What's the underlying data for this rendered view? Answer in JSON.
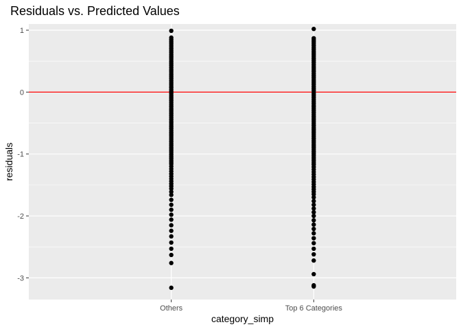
{
  "chart_data": {
    "type": "scatter",
    "title": "Residuals vs. Predicted Values",
    "xlabel": "category_simp",
    "ylabel": "residuals",
    "categories": [
      "Others",
      "Top 6 Categories"
    ],
    "y_ticks": [
      1,
      0,
      -1,
      -2,
      -3
    ],
    "y_tick_labels": [
      "1",
      "0",
      "-1",
      "-2",
      "-3"
    ],
    "ylim": [
      -3.35,
      1.1
    ],
    "grid": true,
    "panel_background": "#ebebeb",
    "point_color": "#000000",
    "reference_line": {
      "y": 0,
      "color": "#ff0000"
    },
    "series": [
      {
        "category": "Others",
        "y": [
          0.99,
          0.88,
          0.85,
          0.82,
          0.79,
          0.76,
          0.73,
          0.7,
          0.67,
          0.64,
          0.61,
          0.58,
          0.55,
          0.52,
          0.49,
          0.46,
          0.43,
          0.4,
          0.37,
          0.34,
          0.31,
          0.28,
          0.25,
          0.22,
          0.19,
          0.16,
          0.13,
          0.1,
          0.07,
          0.04,
          0.01,
          -0.02,
          -0.05,
          -0.08,
          -0.11,
          -0.14,
          -0.17,
          -0.2,
          -0.23,
          -0.26,
          -0.29,
          -0.32,
          -0.35,
          -0.38,
          -0.41,
          -0.44,
          -0.47,
          -0.5,
          -0.53,
          -0.56,
          -0.59,
          -0.62,
          -0.65,
          -0.68,
          -0.71,
          -0.74,
          -0.77,
          -0.8,
          -0.83,
          -0.86,
          -0.89,
          -0.92,
          -0.95,
          -0.98,
          -1.01,
          -1.04,
          -1.07,
          -1.1,
          -1.13,
          -1.16,
          -1.2,
          -1.24,
          -1.28,
          -1.32,
          -1.36,
          -1.4,
          -1.44,
          -1.48,
          -1.52,
          -1.56,
          -1.61,
          -1.66,
          -1.74,
          -1.82,
          -1.9,
          -1.98,
          -2.06,
          -2.15,
          -2.24,
          -2.33,
          -2.43,
          -2.53,
          -2.63,
          -2.76,
          -3.16
        ]
      },
      {
        "category": "Top 6 Categories",
        "y": [
          1.02,
          0.87,
          0.84,
          0.81,
          0.78,
          0.75,
          0.72,
          0.69,
          0.66,
          0.63,
          0.6,
          0.57,
          0.54,
          0.51,
          0.48,
          0.45,
          0.42,
          0.39,
          0.36,
          0.33,
          0.3,
          0.27,
          0.24,
          0.21,
          0.18,
          0.15,
          0.12,
          0.09,
          0.06,
          0.03,
          0.0,
          -0.03,
          -0.06,
          -0.09,
          -0.12,
          -0.15,
          -0.18,
          -0.21,
          -0.24,
          -0.27,
          -0.3,
          -0.33,
          -0.36,
          -0.39,
          -0.42,
          -0.45,
          -0.48,
          -0.51,
          -0.54,
          -0.57,
          -0.6,
          -0.63,
          -0.66,
          -0.69,
          -0.72,
          -0.75,
          -0.78,
          -0.81,
          -0.84,
          -0.87,
          -0.9,
          -0.93,
          -0.96,
          -0.99,
          -1.02,
          -1.05,
          -1.08,
          -1.11,
          -1.14,
          -1.17,
          -1.21,
          -1.25,
          -1.29,
          -1.33,
          -1.37,
          -1.41,
          -1.45,
          -1.49,
          -1.53,
          -1.57,
          -1.61,
          -1.65,
          -1.7,
          -1.76,
          -1.82,
          -1.88,
          -1.94,
          -2.0,
          -2.07,
          -2.14,
          -2.21,
          -2.28,
          -2.36,
          -2.44,
          -2.53,
          -2.62,
          -2.72,
          -2.94,
          -3.12,
          -3.14
        ]
      }
    ]
  }
}
